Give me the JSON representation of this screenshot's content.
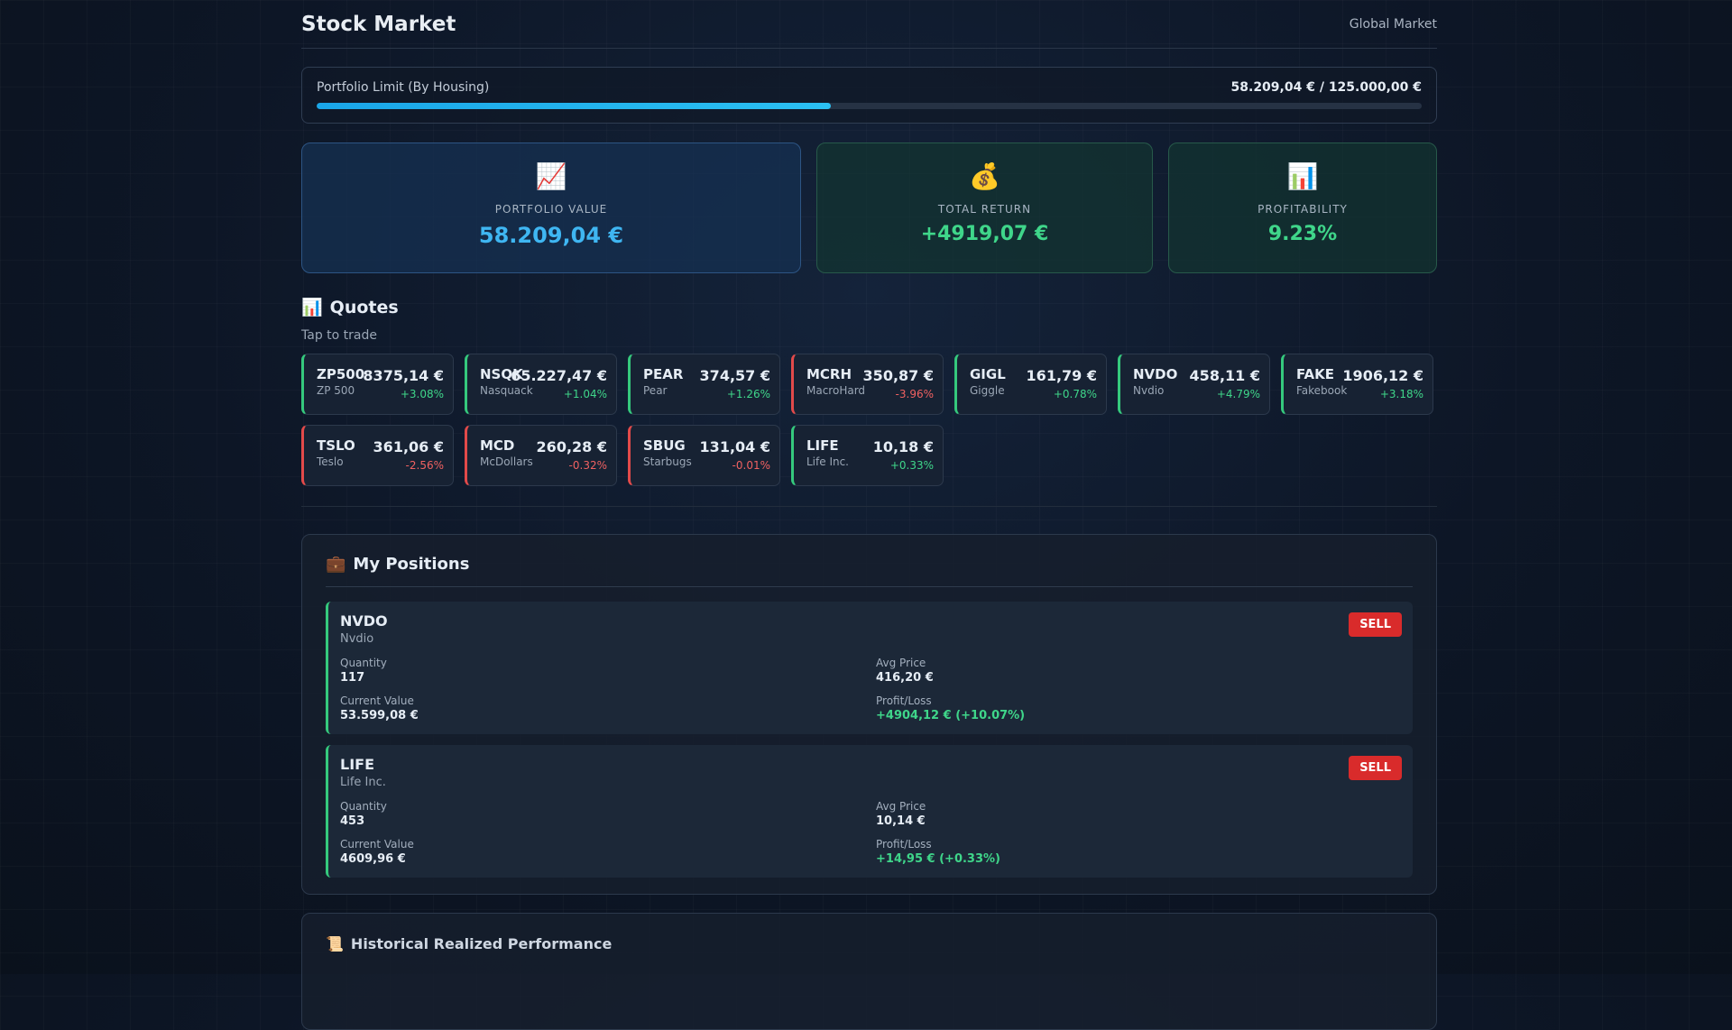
{
  "header": {
    "title": "Stock Market",
    "market": "Global Market"
  },
  "limit": {
    "label": "Portfolio Limit (By Housing)",
    "amount": "58.209,04 € / 125.000,00 €",
    "used": 58209.04,
    "max": 125000
  },
  "stats": [
    {
      "icon": "📈",
      "label": "PORTFOLIO VALUE",
      "value": "58.209,04 €",
      "tone": "blue"
    },
    {
      "icon": "💰",
      "label": "TOTAL RETURN",
      "value": "+4919,07 €",
      "tone": "green"
    },
    {
      "icon": "📊",
      "label": "PROFITABILITY",
      "value": "9.23%",
      "tone": "green"
    }
  ],
  "quotes": {
    "icon": "📊",
    "title": "Quotes",
    "hint": "Tap to trade",
    "items": [
      {
        "symbol": "ZP500",
        "name": "ZP 500",
        "price": "8375,14 €",
        "change": "+3.08%",
        "trend": "up"
      },
      {
        "symbol": "NSQK",
        "name": "Nasquack",
        "price": "65.227,47 €",
        "change": "+1.04%",
        "trend": "up"
      },
      {
        "symbol": "PEAR",
        "name": "Pear",
        "price": "374,57 €",
        "change": "+1.26%",
        "trend": "up"
      },
      {
        "symbol": "MCRH",
        "name": "MacroHard",
        "price": "350,87 €",
        "change": "-3.96%",
        "trend": "down"
      },
      {
        "symbol": "GIGL",
        "name": "Giggle",
        "price": "161,79 €",
        "change": "+0.78%",
        "trend": "up"
      },
      {
        "symbol": "NVDO",
        "name": "Nvdio",
        "price": "458,11 €",
        "change": "+4.79%",
        "trend": "up"
      },
      {
        "symbol": "FAKE",
        "name": "Fakebook",
        "price": "1906,12 €",
        "change": "+3.18%",
        "trend": "up"
      },
      {
        "symbol": "TSLO",
        "name": "Teslo",
        "price": "361,06 €",
        "change": "-2.56%",
        "trend": "down"
      },
      {
        "symbol": "MCD",
        "name": "McDollars",
        "price": "260,28 €",
        "change": "-0.32%",
        "trend": "down"
      },
      {
        "symbol": "SBUG",
        "name": "Starbugs",
        "price": "131,04 €",
        "change": "-0.01%",
        "trend": "down"
      },
      {
        "symbol": "LIFE",
        "name": "Life Inc.",
        "price": "10,18 €",
        "change": "+0.33%",
        "trend": "up"
      }
    ]
  },
  "positions": {
    "icon": "💼",
    "title": "My Positions",
    "items": [
      {
        "symbol": "NVDO",
        "name": "Nvdio",
        "action": "SELL",
        "fields": [
          {
            "label": "Quantity",
            "value": "117"
          },
          {
            "label": "Avg Price",
            "value": "416,20 €"
          },
          {
            "label": "Current Value",
            "value": "53.599,08 €"
          },
          {
            "label": "Profit/Loss",
            "value": "+4904,12 € (+10.07%)",
            "tone": "green"
          }
        ]
      },
      {
        "symbol": "LIFE",
        "name": "Life Inc.",
        "action": "SELL",
        "fields": [
          {
            "label": "Quantity",
            "value": "453"
          },
          {
            "label": "Avg Price",
            "value": "10,14 €"
          },
          {
            "label": "Current Value",
            "value": "4609,96 €"
          },
          {
            "label": "Profit/Loss",
            "value": "+14,95 € (+0.33%)",
            "tone": "green"
          }
        ]
      }
    ]
  },
  "history": {
    "icon": "📜",
    "title": "Historical Realized Performance"
  }
}
